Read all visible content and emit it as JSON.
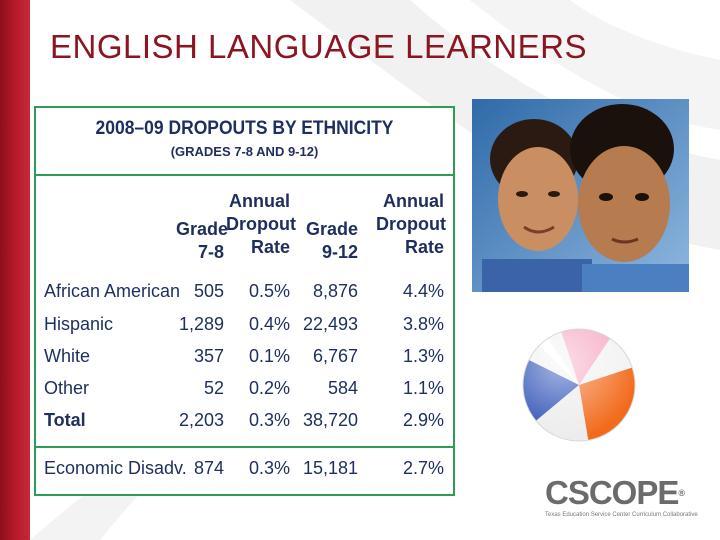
{
  "slide": {
    "title": "ENGLISH LANGUAGE LEARNERS"
  },
  "table": {
    "title": "2008–09 DROPOUTS BY ETHNICITY",
    "subtitle": "(GRADES 7-8 AND 9-12)",
    "headers": {
      "grade78": [
        "Grade",
        "7-8"
      ],
      "rate78": [
        "Annual",
        "Dropout",
        "Rate"
      ],
      "grade912": [
        "Grade",
        "9-12"
      ],
      "rate912": [
        "Annual",
        "Dropout",
        "Rate"
      ]
    },
    "rows": [
      {
        "label": "African American",
        "g78": "505",
        "r78": "0.5%",
        "g912": "8,876",
        "r912": "4.4%"
      },
      {
        "label": "Hispanic",
        "g78": "1,289",
        "r78": "0.4%",
        "g912": "22,493",
        "r912": "3.8%"
      },
      {
        "label": "White",
        "g78": "357",
        "r78": "0.1%",
        "g912": "6,767",
        "r912": "1.3%"
      },
      {
        "label": "Other",
        "g78": "52",
        "r78": "0.2%",
        "g912": "584",
        "r912": "1.1%"
      },
      {
        "label": "Total",
        "g78": "2,203",
        "r78": "0.3%",
        "g912": "38,720",
        "r912": "2.9%"
      }
    ],
    "econ": {
      "label": "Economic Disadv.",
      "g78": "874",
      "r78": "0.3%",
      "g912": "15,181",
      "r912": "2.7%"
    }
  },
  "logo": {
    "word": "CSCOPE",
    "reg": "®",
    "tagline": "Texas Education Service Center Curriculum Collaborative"
  },
  "colors": {
    "accent_red": "#8b1520",
    "table_green": "#2e9b59",
    "table_text": "#1e2e5e"
  }
}
